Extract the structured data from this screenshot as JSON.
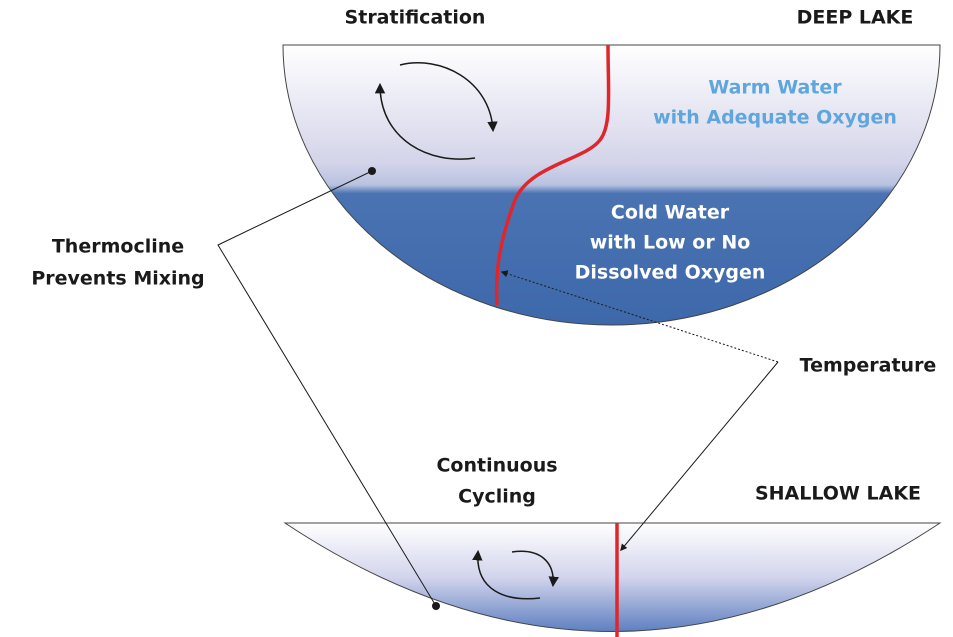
{
  "deep_lake": {
    "title": "DEEP LAKE",
    "heading": "Stratification",
    "warm_label": [
      "Warm Water",
      "with Adequate Oxygen"
    ],
    "cold_label": [
      "Cold Water",
      "with Low or No",
      "Dissolved Oxygen"
    ]
  },
  "shallow_lake": {
    "title": "SHALLOW LAKE",
    "heading": [
      "Continuous",
      "Cycling"
    ]
  },
  "callouts": {
    "thermocline": [
      "Thermocline",
      "Prevents Mixing"
    ],
    "temperature": "Temperature"
  }
}
